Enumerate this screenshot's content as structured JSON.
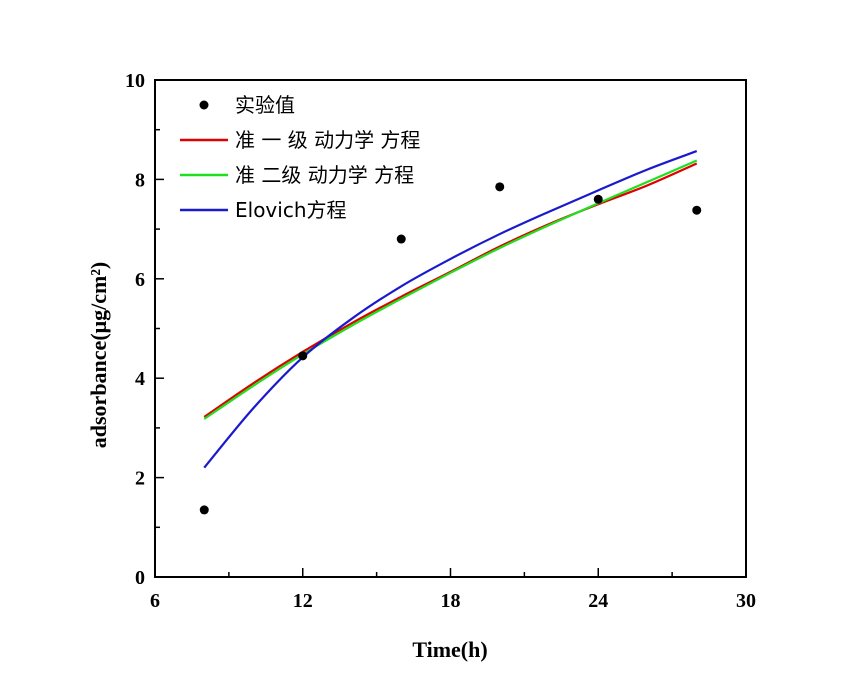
{
  "chart_data": {
    "type": "scatter",
    "title": "",
    "xlabel": "Time(h)",
    "ylabel": "adsorbance(μg/cm²)",
    "xlim": [
      6,
      30
    ],
    "ylim": [
      0,
      10
    ],
    "xticks": [
      6,
      12,
      18,
      24,
      30
    ],
    "yticks": [
      0,
      2,
      4,
      6,
      8,
      10
    ],
    "grid": false,
    "legend_position": "top-left",
    "series": [
      {
        "name": "实验值",
        "kind": "scatter",
        "color": "#000000",
        "x": [
          8,
          12,
          16,
          20,
          24,
          28
        ],
        "y": [
          1.35,
          4.45,
          6.8,
          7.85,
          7.6,
          7.38
        ]
      },
      {
        "name": "准 一 级 动力学 方程",
        "kind": "line",
        "color": "#e00000",
        "x": [
          8,
          10,
          12,
          14,
          16,
          18,
          20,
          22,
          24,
          26,
          28
        ],
        "y": [
          3.22,
          3.9,
          4.53,
          5.11,
          5.64,
          6.14,
          6.65,
          7.1,
          7.5,
          7.88,
          8.32
        ]
      },
      {
        "name": "准 二级 动力学 方程",
        "kind": "line",
        "color": "#1ee01e",
        "x": [
          8,
          10,
          12,
          14,
          16,
          18,
          20,
          22,
          24,
          26,
          28
        ],
        "y": [
          3.18,
          3.85,
          4.48,
          5.06,
          5.6,
          6.12,
          6.62,
          7.08,
          7.52,
          7.95,
          8.38
        ]
      },
      {
        "name": "Elovich方程",
        "kind": "line",
        "color": "#1a1acd",
        "x": [
          8,
          10,
          12,
          14,
          16,
          18,
          20,
          22,
          24,
          26,
          28
        ],
        "y": [
          2.2,
          3.4,
          4.42,
          5.2,
          5.85,
          6.4,
          6.9,
          7.35,
          7.78,
          8.2,
          8.57
        ]
      }
    ]
  }
}
